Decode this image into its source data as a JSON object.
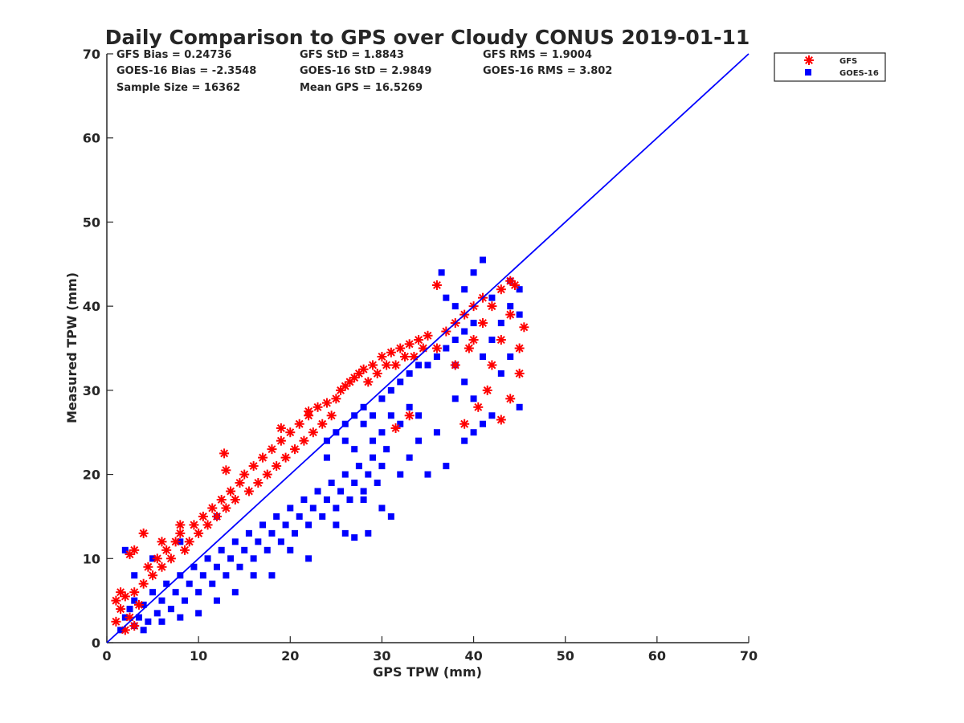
{
  "chart_data": {
    "type": "scatter",
    "title": "Daily Comparison to GPS over Cloudy CONUS 2019-01-11",
    "xlabel": "GPS TPW (mm)",
    "ylabel": "Measured TPW (mm)",
    "xlim": [
      0,
      70
    ],
    "ylim": [
      0,
      70
    ],
    "xticks": [
      "0",
      "10",
      "20",
      "30",
      "40",
      "50",
      "60",
      "70"
    ],
    "yticks": [
      "0",
      "10",
      "20",
      "30",
      "40",
      "50",
      "60",
      "70"
    ],
    "grid": false,
    "legend_position": "outside-top-right",
    "stats": [
      [
        "GFS Bias = 0.24736",
        "GFS StD = 1.8843",
        "GFS RMS = 1.9004"
      ],
      [
        "GOES-16 Bias = -2.3548",
        "GOES-16 StD = 2.9849",
        "GOES-16 RMS = 3.802"
      ],
      [
        "Sample Size = 16362",
        "Mean GPS = 16.5269",
        ""
      ]
    ],
    "reference_line": {
      "x": [
        0,
        70
      ],
      "y": [
        0,
        70
      ],
      "color": "#0000ff"
    },
    "series": [
      {
        "name": "GOES-16",
        "marker": "square",
        "color": "#0000ff",
        "points": [
          [
            1.5,
            1.5
          ],
          [
            2,
            3
          ],
          [
            2.5,
            4
          ],
          [
            3,
            2
          ],
          [
            3,
            5
          ],
          [
            3.5,
            3
          ],
          [
            4,
            4.5
          ],
          [
            4.5,
            2.5
          ],
          [
            5,
            6
          ],
          [
            5.5,
            3.5
          ],
          [
            6,
            5
          ],
          [
            6.5,
            7
          ],
          [
            7,
            4
          ],
          [
            7.5,
            6
          ],
          [
            8,
            8
          ],
          [
            8.5,
            5
          ],
          [
            9,
            7
          ],
          [
            9.5,
            9
          ],
          [
            10,
            6
          ],
          [
            10.5,
            8
          ],
          [
            11,
            10
          ],
          [
            11.5,
            7
          ],
          [
            12,
            9
          ],
          [
            12.5,
            11
          ],
          [
            13,
            8
          ],
          [
            13.5,
            10
          ],
          [
            14,
            12
          ],
          [
            14.5,
            9
          ],
          [
            15,
            11
          ],
          [
            15.5,
            13
          ],
          [
            16,
            10
          ],
          [
            16.5,
            12
          ],
          [
            17,
            14
          ],
          [
            17.5,
            11
          ],
          [
            18,
            13
          ],
          [
            18.5,
            15
          ],
          [
            19,
            12
          ],
          [
            19.5,
            14
          ],
          [
            20,
            16
          ],
          [
            20.5,
            13
          ],
          [
            21,
            15
          ],
          [
            21.5,
            17
          ],
          [
            22,
            14
          ],
          [
            22.5,
            16
          ],
          [
            23,
            18
          ],
          [
            23.5,
            15
          ],
          [
            24,
            17
          ],
          [
            24.5,
            19
          ],
          [
            25,
            16
          ],
          [
            25.5,
            18
          ],
          [
            26,
            20
          ],
          [
            26.5,
            17
          ],
          [
            27,
            19
          ],
          [
            27.5,
            21
          ],
          [
            28,
            18
          ],
          [
            28.5,
            20
          ],
          [
            29,
            22
          ],
          [
            29.5,
            19
          ],
          [
            30,
            21
          ],
          [
            30.5,
            23
          ],
          [
            24,
            22
          ],
          [
            26,
            24
          ],
          [
            27,
            23
          ],
          [
            28,
            26
          ],
          [
            29,
            24
          ],
          [
            30,
            25
          ],
          [
            31,
            27
          ],
          [
            32,
            26
          ],
          [
            33,
            28
          ],
          [
            34,
            27
          ],
          [
            31,
            30
          ],
          [
            32,
            31
          ],
          [
            33,
            32
          ],
          [
            34,
            33
          ],
          [
            35,
            33
          ],
          [
            36,
            34
          ],
          [
            37,
            35
          ],
          [
            38,
            36
          ],
          [
            39,
            37
          ],
          [
            40,
            38
          ],
          [
            38,
            33
          ],
          [
            39,
            31
          ],
          [
            40,
            29
          ],
          [
            41,
            34
          ],
          [
            42,
            36
          ],
          [
            43,
            38
          ],
          [
            44,
            40
          ],
          [
            45,
            39
          ],
          [
            38,
            40
          ],
          [
            39,
            42
          ],
          [
            40,
            44
          ],
          [
            41,
            45.5
          ],
          [
            36.5,
            44
          ],
          [
            37,
            41
          ],
          [
            42,
            41
          ],
          [
            44,
            43
          ],
          [
            45,
            42
          ],
          [
            40,
            25
          ],
          [
            41,
            26
          ],
          [
            39,
            24
          ],
          [
            43,
            32
          ],
          [
            44,
            34
          ],
          [
            45,
            28
          ],
          [
            42,
            27
          ],
          [
            38,
            29
          ],
          [
            8,
            12
          ],
          [
            5,
            10
          ],
          [
            3,
            8
          ],
          [
            2,
            11
          ],
          [
            12,
            15
          ],
          [
            6,
            2.5
          ],
          [
            10,
            3.5
          ],
          [
            14,
            6
          ],
          [
            18,
            8
          ],
          [
            22,
            10
          ],
          [
            26,
            13
          ],
          [
            30,
            16
          ],
          [
            32,
            20
          ],
          [
            33,
            22
          ],
          [
            28,
            17
          ],
          [
            35,
            20
          ],
          [
            37,
            21
          ],
          [
            34,
            24
          ],
          [
            36,
            25
          ],
          [
            25,
            14
          ],
          [
            20,
            11
          ],
          [
            16,
            8
          ],
          [
            12,
            5
          ],
          [
            8,
            3
          ],
          [
            4,
            1.5
          ],
          [
            27,
            12.5
          ],
          [
            28.5,
            13
          ],
          [
            31,
            15
          ],
          [
            29,
            27
          ],
          [
            30,
            29
          ],
          [
            28,
            28
          ],
          [
            27,
            27
          ],
          [
            26,
            26
          ],
          [
            25,
            25
          ],
          [
            24,
            24
          ]
        ]
      },
      {
        "name": "GFS",
        "marker": "asterisk",
        "color": "#ff0000",
        "points": [
          [
            1,
            2.5
          ],
          [
            1.5,
            4
          ],
          [
            2,
            5.5
          ],
          [
            2.5,
            3
          ],
          [
            3,
            6
          ],
          [
            3.5,
            4.5
          ],
          [
            4,
            7
          ],
          [
            4.5,
            9
          ],
          [
            5,
            8
          ],
          [
            5.5,
            10
          ],
          [
            6,
            9
          ],
          [
            6.5,
            11
          ],
          [
            7,
            10
          ],
          [
            7.5,
            12
          ],
          [
            8,
            13
          ],
          [
            8.5,
            11
          ],
          [
            9,
            12
          ],
          [
            9.5,
            14
          ],
          [
            10,
            13
          ],
          [
            10.5,
            15
          ],
          [
            11,
            14
          ],
          [
            11.5,
            16
          ],
          [
            12,
            15
          ],
          [
            12.5,
            17
          ],
          [
            13,
            16
          ],
          [
            13.5,
            18
          ],
          [
            14,
            17
          ],
          [
            14.5,
            19
          ],
          [
            15,
            20
          ],
          [
            15.5,
            18
          ],
          [
            16,
            21
          ],
          [
            16.5,
            19
          ],
          [
            17,
            22
          ],
          [
            17.5,
            20
          ],
          [
            18,
            23
          ],
          [
            18.5,
            21
          ],
          [
            19,
            24
          ],
          [
            19.5,
            22
          ],
          [
            20,
            25
          ],
          [
            20.5,
            23
          ],
          [
            21,
            26
          ],
          [
            21.5,
            24
          ],
          [
            22,
            27
          ],
          [
            22.5,
            25
          ],
          [
            23,
            28
          ],
          [
            23.5,
            26
          ],
          [
            24,
            28.5
          ],
          [
            24.5,
            27
          ],
          [
            25,
            29
          ],
          [
            25.5,
            30
          ],
          [
            26,
            30.5
          ],
          [
            26.5,
            31
          ],
          [
            27,
            31.5
          ],
          [
            27.5,
            32
          ],
          [
            28,
            32.5
          ],
          [
            28.5,
            31
          ],
          [
            29,
            33
          ],
          [
            29.5,
            32
          ],
          [
            30,
            34
          ],
          [
            30.5,
            33
          ],
          [
            31,
            34.5
          ],
          [
            31.5,
            33
          ],
          [
            32,
            35
          ],
          [
            32.5,
            34
          ],
          [
            33,
            35.5
          ],
          [
            33.5,
            34
          ],
          [
            34,
            36
          ],
          [
            34.5,
            35
          ],
          [
            35,
            36.5
          ],
          [
            36,
            35
          ],
          [
            37,
            37
          ],
          [
            38,
            38
          ],
          [
            39,
            39
          ],
          [
            40,
            40
          ],
          [
            41,
            41
          ],
          [
            42,
            40
          ],
          [
            43,
            42
          ],
          [
            44,
            43
          ],
          [
            36,
            42.5
          ],
          [
            44.5,
            42.5
          ],
          [
            45.5,
            37.5
          ],
          [
            45,
            35
          ],
          [
            45,
            32
          ],
          [
            44,
            29
          ],
          [
            43,
            26.5
          ],
          [
            39,
            26
          ],
          [
            40.5,
            28
          ],
          [
            41.5,
            30
          ],
          [
            42,
            33
          ],
          [
            40,
            36
          ],
          [
            38,
            33
          ],
          [
            39.5,
            35
          ],
          [
            41,
            38
          ],
          [
            43,
            36
          ],
          [
            44,
            39
          ],
          [
            31.5,
            25.5
          ],
          [
            33,
            27
          ],
          [
            12.8,
            22.5
          ],
          [
            13,
            20.5
          ],
          [
            2.5,
            10.5
          ],
          [
            4,
            13
          ],
          [
            3,
            11
          ],
          [
            19,
            25.5
          ],
          [
            22,
            27.5
          ],
          [
            6,
            12
          ],
          [
            8,
            14
          ],
          [
            1,
            5
          ],
          [
            1.5,
            6
          ],
          [
            2,
            1.5
          ],
          [
            3,
            2
          ]
        ]
      }
    ]
  }
}
